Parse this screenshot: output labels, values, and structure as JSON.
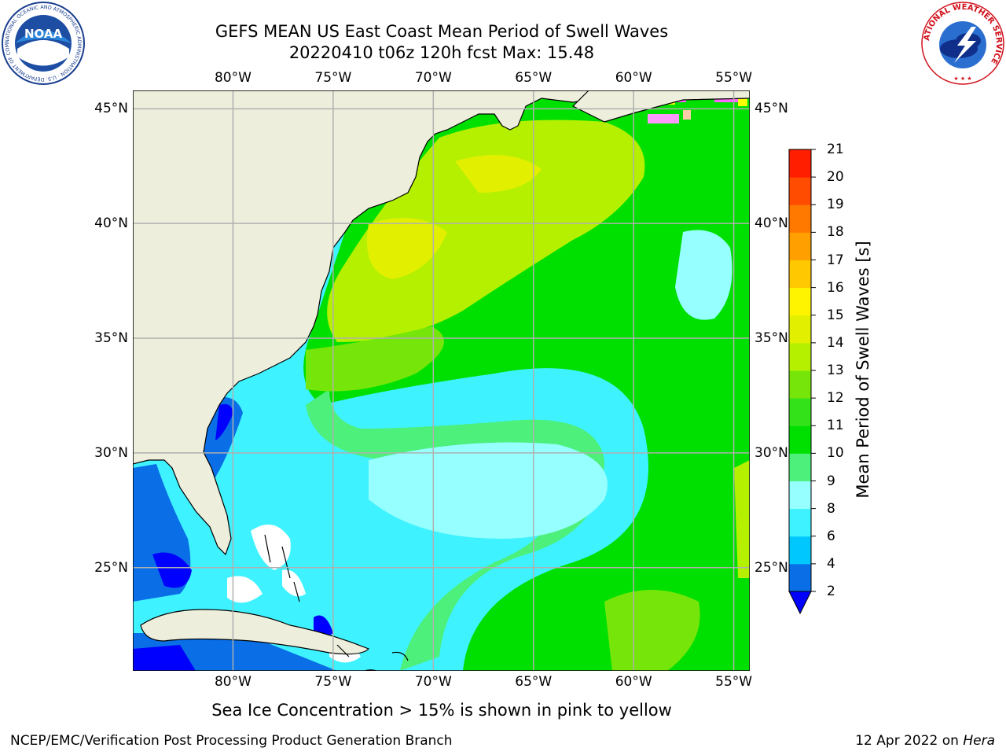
{
  "header": {
    "title_line1": "GEFS MEAN US East Coast Mean Period of Swell Waves",
    "title_line2": "20220410 t06z 120h fcst   Max: 15.48"
  },
  "logos": {
    "left": {
      "name": "noaa-logo",
      "text": "NOAA",
      "ring_text": "NATIONAL OCEANIC AND ATMOSPHERIC ADMINISTRATION · U.S. DEPARTMENT OF COMMERCE"
    },
    "right": {
      "name": "nws-logo",
      "ring_text": "NATIONAL WEATHER SERVICE"
    }
  },
  "map": {
    "lon_ticks": [
      "80°W",
      "75°W",
      "70°W",
      "65°W",
      "60°W",
      "55°W"
    ],
    "lat_ticks": [
      "45°N",
      "40°N",
      "35°N",
      "30°N",
      "25°N"
    ],
    "lon_values": [
      -80,
      -75,
      -70,
      -65,
      -60,
      -55
    ],
    "lat_values": [
      45,
      40,
      35,
      30,
      25
    ],
    "extent": {
      "lon_min": -85,
      "lon_max": -54.2,
      "lat_min": 20.5,
      "lat_max": 45.8
    },
    "land_color": "#eeeedc",
    "grid_color": "#b0b0b0"
  },
  "colorbar": {
    "title": "Mean Period of Swell Waves [s]",
    "labels": [
      "2",
      "4",
      "6",
      "8",
      "9",
      "10",
      "11",
      "12",
      "13",
      "14",
      "15",
      "16",
      "17",
      "18",
      "19",
      "20",
      "21"
    ],
    "colors": [
      "#0a6ee6",
      "#00c8ff",
      "#3ff2ff",
      "#96ffff",
      "#4cf07a",
      "#00e000",
      "#34e21a",
      "#76e60a",
      "#b4f000",
      "#e2f000",
      "#fff400",
      "#ffc800",
      "#ffa000",
      "#ff7800",
      "#ff4c00",
      "#ff1e00"
    ],
    "under_color": "#0000ff"
  },
  "note": "Sea Ice Concentration > 15% is shown in pink to yellow",
  "footer": {
    "left": "NCEP/EMC/Verification Post Processing Product Generation Branch",
    "date": "12 Apr 2022 on ",
    "host": "Hera"
  }
}
